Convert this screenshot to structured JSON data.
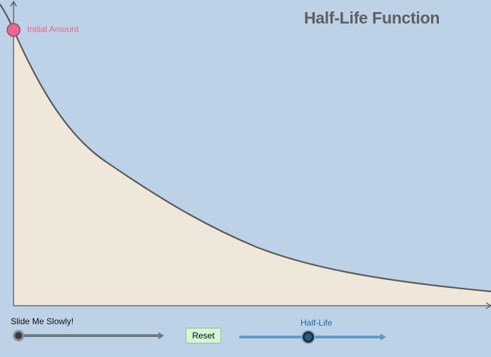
{
  "title": "Half-Life Function",
  "point_label": "Initial Amount",
  "controls": {
    "slider_label": "Slide Me Slowly!",
    "reset_label": "Reset",
    "half_life_label": "Half-Life"
  },
  "colors": {
    "background": "#bdd2e6",
    "area_fill": "#efe8da",
    "curve": "#5a5a5a",
    "point": "#f06292",
    "half_life_slider": "#5e9bc7"
  }
}
